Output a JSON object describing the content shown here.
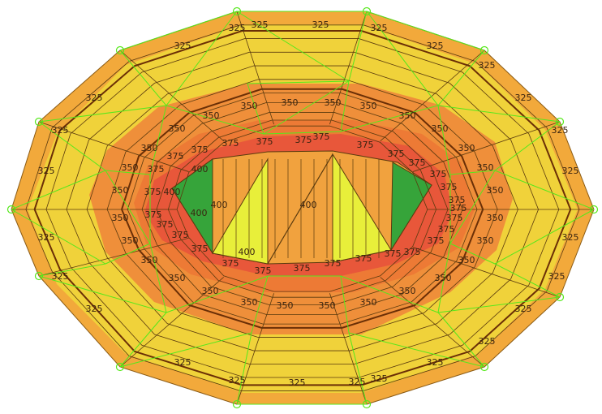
{
  "diagram": {
    "type": "contour-mesh",
    "colors": {
      "background": "#ffffff",
      "band_outer": "#f2a93b",
      "band_yellow": "#f0d23a",
      "band_orange": "#ef8f3a",
      "band_dark_orange": "#ed7a35",
      "band_red": "#e8573a",
      "band_top_orange": "#f1a23e",
      "band_pale_yellow": "#e8ef3a",
      "band_green": "#36a43a",
      "grid_line": "#5a3a0e",
      "contour_line": "#6b2f06",
      "mesh_line": "#56e81c",
      "node": "#56e81c"
    },
    "label_325": "325",
    "label_350": "350",
    "label_375": "375",
    "label_400": "400"
  }
}
